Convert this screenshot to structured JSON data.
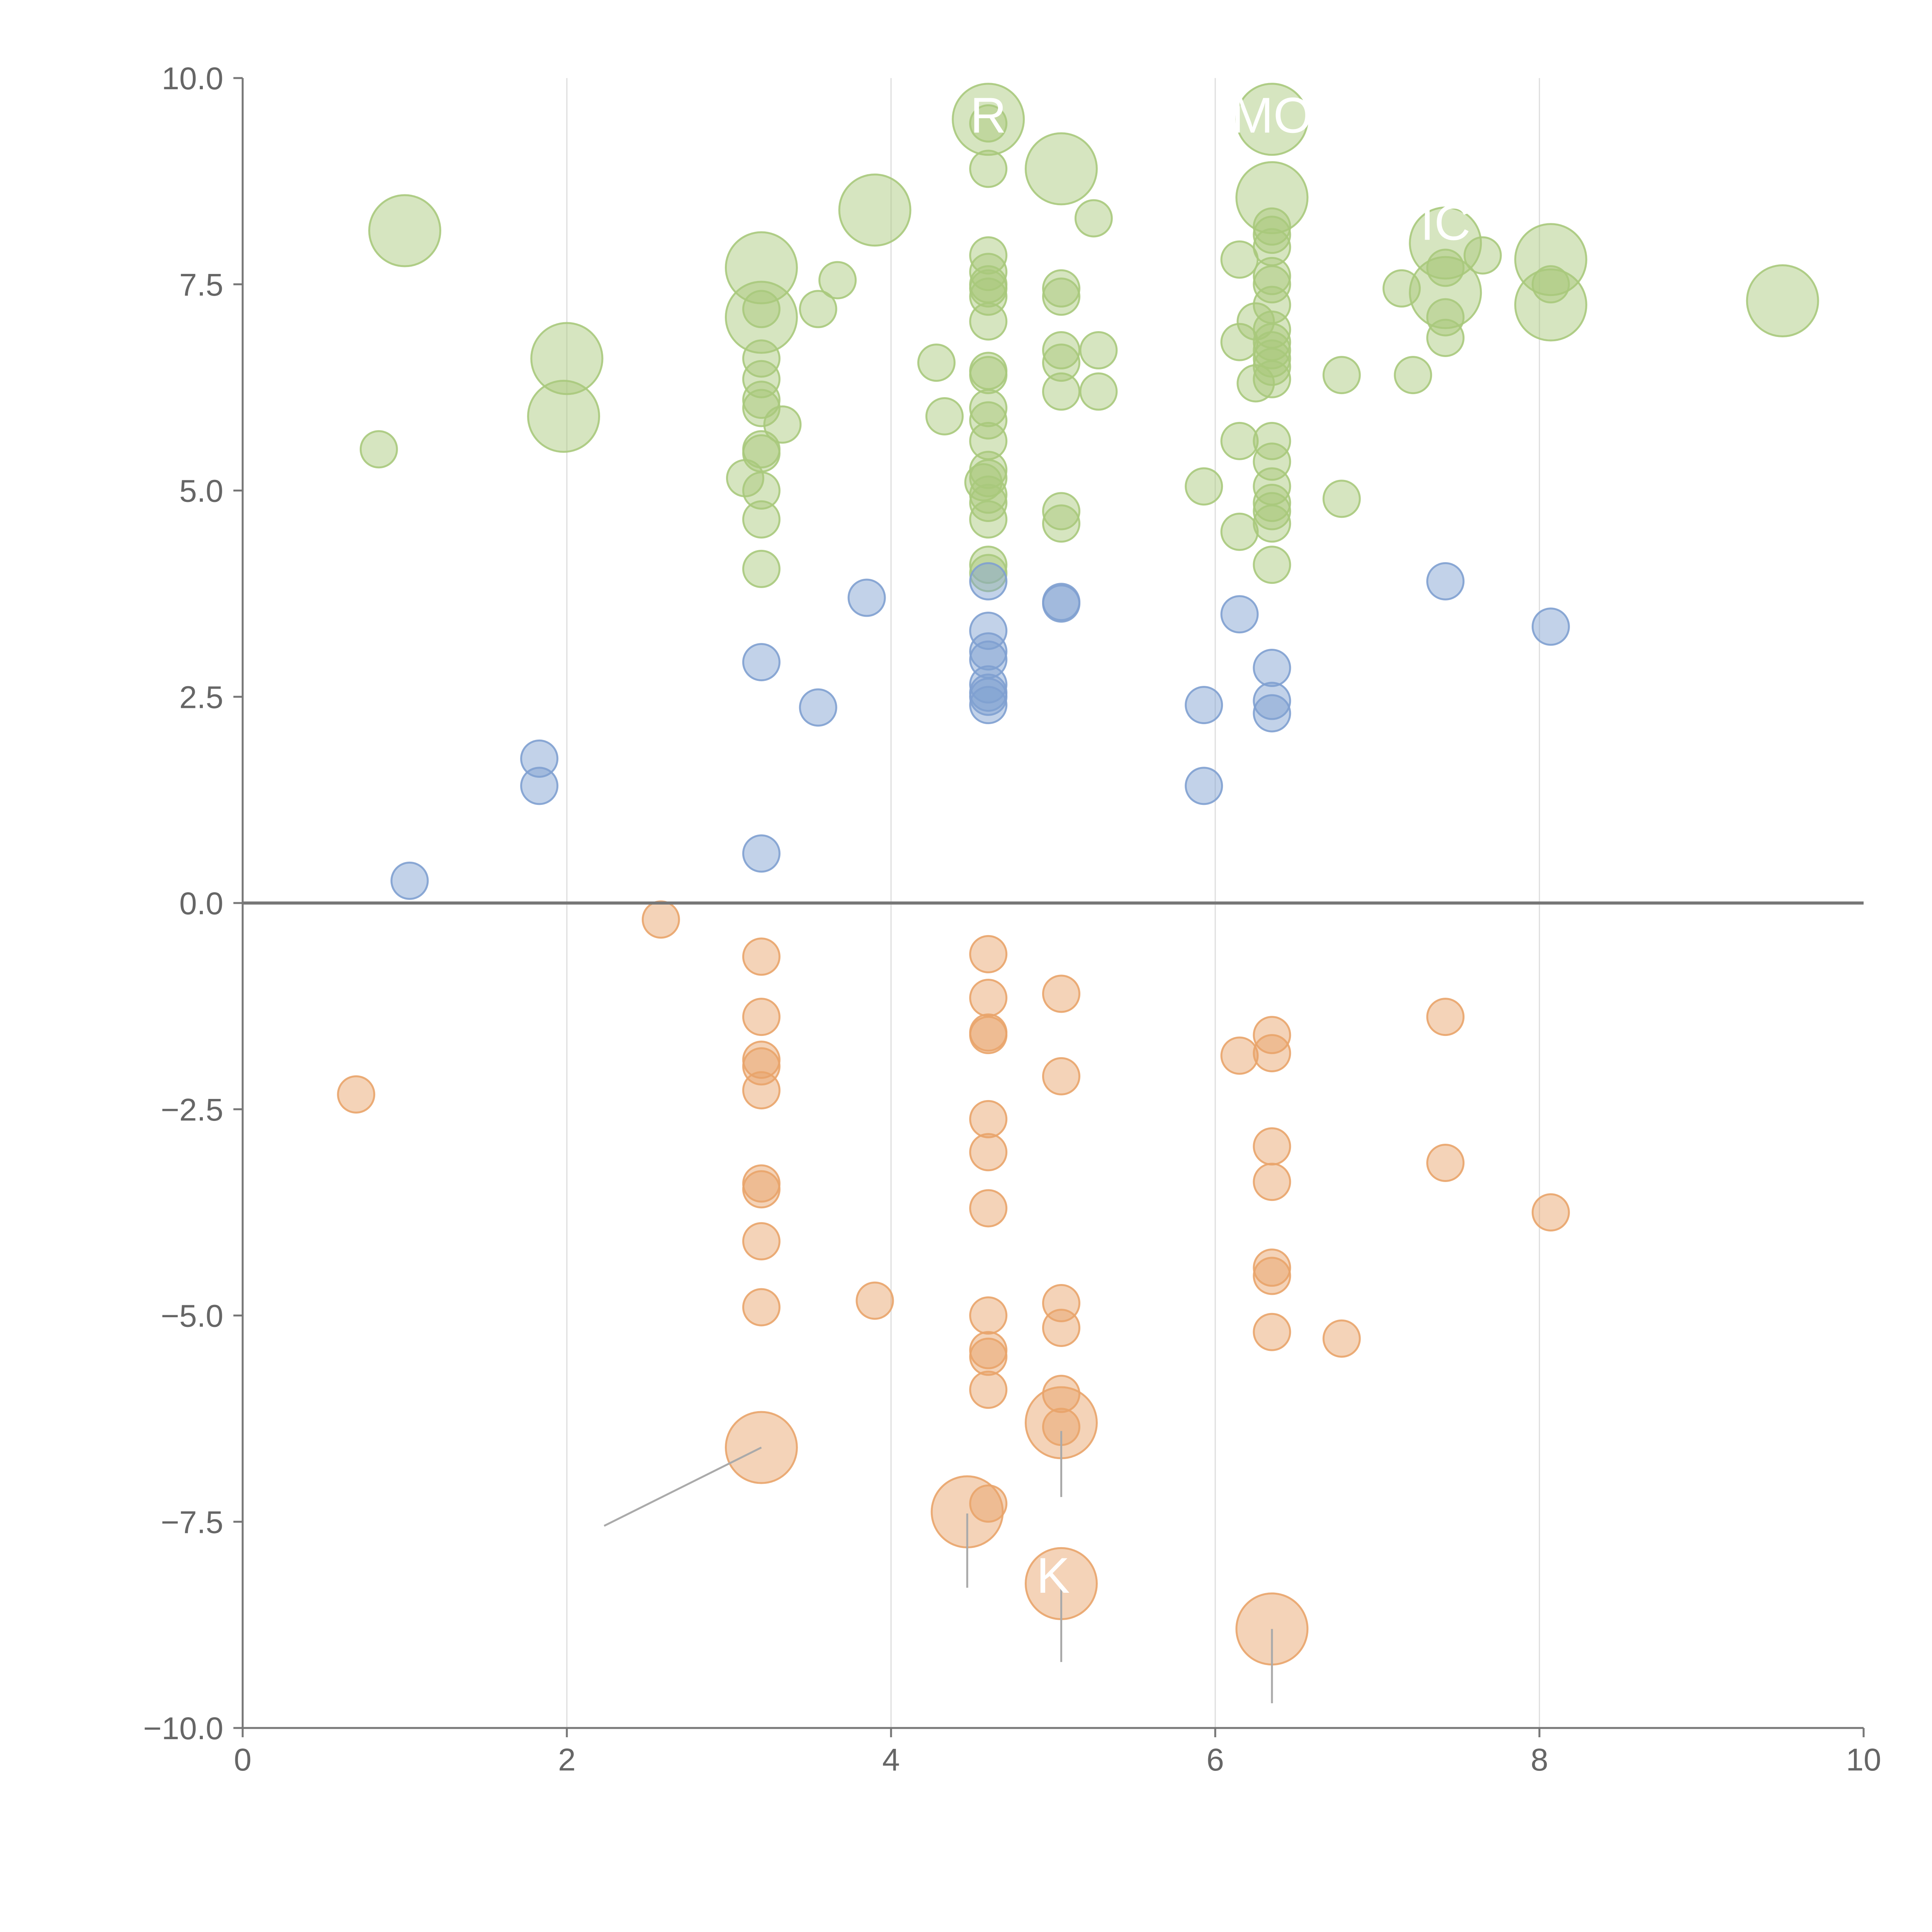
{
  "chart_data": {
    "type": "scatter",
    "title": "",
    "xlabel": "",
    "ylabel": "",
    "xlim": [
      0,
      10
    ],
    "ylim": [
      -10,
      10
    ],
    "x_ticks": [
      "0",
      "2",
      "4",
      "6",
      "8",
      "10"
    ],
    "y_ticks": [
      "10.0",
      "7.5",
      "5.0",
      "2.5",
      "0.0",
      "−2.5",
      "−5.0",
      "−7.5",
      "−10.0"
    ],
    "vertical_gridlines_at": [
      2,
      4,
      6,
      8
    ],
    "reference_line_y": 0,
    "colors": {
      "green": "#a9c97c",
      "blue": "#7fa0d0",
      "orange": "#e9a46a",
      "axis": "#777777",
      "grid": "#dddddd"
    },
    "series": [
      {
        "name": "green",
        "color": "#a9c97c",
        "points": [
          {
            "x": 1.0,
            "y": 8.15,
            "size": 3
          },
          {
            "x": 0.84,
            "y": 5.5,
            "size": 1
          },
          {
            "x": 2.0,
            "y": 6.6,
            "size": 3
          },
          {
            "x": 1.98,
            "y": 5.9,
            "size": 3
          },
          {
            "x": 3.2,
            "y": 7.7,
            "size": 3
          },
          {
            "x": 3.2,
            "y": 7.1,
            "size": 3
          },
          {
            "x": 3.2,
            "y": 7.2,
            "size": 1
          },
          {
            "x": 3.2,
            "y": 6.6,
            "size": 1
          },
          {
            "x": 3.2,
            "y": 6.35,
            "size": 1
          },
          {
            "x": 3.2,
            "y": 6.1,
            "size": 1
          },
          {
            "x": 3.2,
            "y": 6.0,
            "size": 1
          },
          {
            "x": 3.2,
            "y": 5.5,
            "size": 1
          },
          {
            "x": 3.2,
            "y": 5.45,
            "size": 1
          },
          {
            "x": 3.1,
            "y": 5.15,
            "size": 1
          },
          {
            "x": 3.2,
            "y": 5.0,
            "size": 1
          },
          {
            "x": 3.2,
            "y": 4.65,
            "size": 1
          },
          {
            "x": 3.2,
            "y": 4.05,
            "size": 1
          },
          {
            "x": 3.33,
            "y": 5.8,
            "size": 1
          },
          {
            "x": 3.55,
            "y": 7.2,
            "size": 1
          },
          {
            "x": 3.67,
            "y": 7.55,
            "size": 1
          },
          {
            "x": 3.9,
            "y": 8.4,
            "size": 3
          },
          {
            "x": 4.28,
            "y": 6.55,
            "size": 1
          },
          {
            "x": 4.33,
            "y": 5.9,
            "size": 1
          },
          {
            "x": 4.6,
            "y": 9.5,
            "size": 3
          },
          {
            "x": 4.6,
            "y": 9.45,
            "size": 1
          },
          {
            "x": 4.6,
            "y": 8.9,
            "size": 1
          },
          {
            "x": 4.6,
            "y": 7.85,
            "size": 1
          },
          {
            "x": 4.6,
            "y": 7.65,
            "size": 1
          },
          {
            "x": 4.6,
            "y": 7.5,
            "size": 1
          },
          {
            "x": 4.6,
            "y": 7.45,
            "size": 1
          },
          {
            "x": 4.6,
            "y": 7.35,
            "size": 1
          },
          {
            "x": 4.6,
            "y": 7.05,
            "size": 1
          },
          {
            "x": 4.6,
            "y": 6.45,
            "size": 1
          },
          {
            "x": 4.6,
            "y": 6.4,
            "size": 1
          },
          {
            "x": 4.6,
            "y": 6.0,
            "size": 1
          },
          {
            "x": 4.6,
            "y": 5.85,
            "size": 1
          },
          {
            "x": 4.6,
            "y": 5.6,
            "size": 1
          },
          {
            "x": 4.6,
            "y": 5.25,
            "size": 1
          },
          {
            "x": 4.6,
            "y": 5.15,
            "size": 1
          },
          {
            "x": 4.57,
            "y": 5.1,
            "size": 1
          },
          {
            "x": 4.6,
            "y": 4.95,
            "size": 1
          },
          {
            "x": 4.6,
            "y": 4.85,
            "size": 1
          },
          {
            "x": 4.6,
            "y": 4.65,
            "size": 1
          },
          {
            "x": 4.6,
            "y": 4.1,
            "size": 1
          },
          {
            "x": 4.6,
            "y": 4.0,
            "size": 1
          },
          {
            "x": 5.05,
            "y": 8.9,
            "size": 3
          },
          {
            "x": 5.05,
            "y": 7.45,
            "size": 1
          },
          {
            "x": 5.05,
            "y": 7.35,
            "size": 1
          },
          {
            "x": 5.05,
            "y": 6.7,
            "size": 1
          },
          {
            "x": 5.05,
            "y": 6.55,
            "size": 1
          },
          {
            "x": 5.05,
            "y": 6.2,
            "size": 1
          },
          {
            "x": 5.05,
            "y": 4.75,
            "size": 1
          },
          {
            "x": 5.05,
            "y": 4.6,
            "size": 1
          },
          {
            "x": 5.25,
            "y": 8.3,
            "size": 1
          },
          {
            "x": 5.28,
            "y": 6.7,
            "size": 1
          },
          {
            "x": 5.28,
            "y": 6.2,
            "size": 1
          },
          {
            "x": 5.93,
            "y": 5.05,
            "size": 1
          },
          {
            "x": 6.15,
            "y": 7.8,
            "size": 1
          },
          {
            "x": 6.15,
            "y": 6.8,
            "size": 1
          },
          {
            "x": 6.15,
            "y": 5.6,
            "size": 1
          },
          {
            "x": 6.15,
            "y": 4.5,
            "size": 1
          },
          {
            "x": 6.25,
            "y": 7.05,
            "size": 1
          },
          {
            "x": 6.25,
            "y": 6.3,
            "size": 1
          },
          {
            "x": 6.35,
            "y": 9.5,
            "size": 3
          },
          {
            "x": 6.35,
            "y": 8.55,
            "size": 3
          },
          {
            "x": 6.35,
            "y": 8.2,
            "size": 1
          },
          {
            "x": 6.35,
            "y": 8.1,
            "size": 1
          },
          {
            "x": 6.35,
            "y": 7.95,
            "size": 1
          },
          {
            "x": 6.35,
            "y": 7.6,
            "size": 1
          },
          {
            "x": 6.35,
            "y": 7.5,
            "size": 1
          },
          {
            "x": 6.35,
            "y": 7.25,
            "size": 1
          },
          {
            "x": 6.35,
            "y": 6.95,
            "size": 1
          },
          {
            "x": 6.35,
            "y": 6.8,
            "size": 1
          },
          {
            "x": 6.35,
            "y": 6.7,
            "size": 1
          },
          {
            "x": 6.35,
            "y": 6.6,
            "size": 1
          },
          {
            "x": 6.35,
            "y": 6.5,
            "size": 1
          },
          {
            "x": 6.35,
            "y": 6.35,
            "size": 1
          },
          {
            "x": 6.35,
            "y": 5.6,
            "size": 1
          },
          {
            "x": 6.35,
            "y": 5.35,
            "size": 1
          },
          {
            "x": 6.35,
            "y": 5.05,
            "size": 1
          },
          {
            "x": 6.35,
            "y": 4.85,
            "size": 1
          },
          {
            "x": 6.35,
            "y": 4.75,
            "size": 1
          },
          {
            "x": 6.35,
            "y": 4.6,
            "size": 1
          },
          {
            "x": 6.35,
            "y": 4.1,
            "size": 1
          },
          {
            "x": 6.78,
            "y": 6.4,
            "size": 1
          },
          {
            "x": 6.78,
            "y": 4.9,
            "size": 1
          },
          {
            "x": 7.15,
            "y": 7.45,
            "size": 1
          },
          {
            "x": 7.22,
            "y": 6.4,
            "size": 1
          },
          {
            "x": 7.42,
            "y": 8.0,
            "size": 3
          },
          {
            "x": 7.42,
            "y": 7.4,
            "size": 3
          },
          {
            "x": 7.42,
            "y": 7.7,
            "size": 1
          },
          {
            "x": 7.42,
            "y": 7.1,
            "size": 1
          },
          {
            "x": 7.42,
            "y": 6.85,
            "size": 1
          },
          {
            "x": 7.65,
            "y": 7.85,
            "size": 1
          },
          {
            "x": 8.07,
            "y": 7.8,
            "size": 3
          },
          {
            "x": 8.07,
            "y": 7.25,
            "size": 3
          },
          {
            "x": 8.07,
            "y": 7.5,
            "size": 1
          },
          {
            "x": 9.5,
            "y": 7.3,
            "size": 3
          }
        ]
      },
      {
        "name": "blue",
        "color": "#7fa0d0",
        "points": [
          {
            "x": 1.03,
            "y": 0.27,
            "size": 1
          },
          {
            "x": 1.83,
            "y": 1.75,
            "size": 1
          },
          {
            "x": 1.83,
            "y": 1.42,
            "size": 1
          },
          {
            "x": 3.2,
            "y": 2.92,
            "size": 1
          },
          {
            "x": 3.2,
            "y": 0.6,
            "size": 1
          },
          {
            "x": 3.55,
            "y": 2.37,
            "size": 1
          },
          {
            "x": 3.85,
            "y": 3.7,
            "size": 1
          },
          {
            "x": 4.6,
            "y": 3.9,
            "size": 1
          },
          {
            "x": 4.6,
            "y": 3.3,
            "size": 1
          },
          {
            "x": 4.6,
            "y": 3.05,
            "size": 1
          },
          {
            "x": 4.6,
            "y": 2.95,
            "size": 1
          },
          {
            "x": 4.6,
            "y": 2.65,
            "size": 1
          },
          {
            "x": 4.6,
            "y": 2.55,
            "size": 1
          },
          {
            "x": 4.6,
            "y": 2.5,
            "size": 1
          },
          {
            "x": 4.6,
            "y": 2.4,
            "size": 1
          },
          {
            "x": 5.05,
            "y": 3.65,
            "size": 1
          },
          {
            "x": 5.05,
            "y": 3.63,
            "size": 1
          },
          {
            "x": 5.93,
            "y": 2.4,
            "size": 1
          },
          {
            "x": 5.93,
            "y": 1.42,
            "size": 1
          },
          {
            "x": 6.15,
            "y": 3.5,
            "size": 1
          },
          {
            "x": 6.35,
            "y": 2.85,
            "size": 1
          },
          {
            "x": 6.35,
            "y": 2.45,
            "size": 1
          },
          {
            "x": 6.35,
            "y": 2.3,
            "size": 1
          },
          {
            "x": 7.42,
            "y": 3.9,
            "size": 1
          },
          {
            "x": 8.07,
            "y": 3.35,
            "size": 1
          }
        ]
      },
      {
        "name": "orange",
        "color": "#e9a46a",
        "points": [
          {
            "x": 0.7,
            "y": -2.32,
            "size": 1
          },
          {
            "x": 2.58,
            "y": -0.2,
            "size": 1
          },
          {
            "x": 3.2,
            "y": -0.65,
            "size": 1
          },
          {
            "x": 3.2,
            "y": -1.38,
            "size": 1
          },
          {
            "x": 3.2,
            "y": -1.9,
            "size": 1
          },
          {
            "x": 3.2,
            "y": -1.98,
            "size": 1
          },
          {
            "x": 3.2,
            "y": -2.27,
            "size": 1
          },
          {
            "x": 3.2,
            "y": -3.4,
            "size": 1
          },
          {
            "x": 3.2,
            "y": -3.47,
            "size": 1
          },
          {
            "x": 3.2,
            "y": -4.1,
            "size": 1
          },
          {
            "x": 3.2,
            "y": -4.9,
            "size": 1
          },
          {
            "x": 3.2,
            "y": -6.6,
            "size": 3
          },
          {
            "x": 3.9,
            "y": -4.82,
            "size": 1
          },
          {
            "x": 4.6,
            "y": -0.62,
            "size": 1
          },
          {
            "x": 4.6,
            "y": -1.15,
            "size": 1
          },
          {
            "x": 4.6,
            "y": -1.57,
            "size": 1
          },
          {
            "x": 4.6,
            "y": -1.6,
            "size": 1
          },
          {
            "x": 4.6,
            "y": -2.62,
            "size": 1
          },
          {
            "x": 4.6,
            "y": -3.02,
            "size": 1
          },
          {
            "x": 4.6,
            "y": -3.7,
            "size": 1
          },
          {
            "x": 4.6,
            "y": -5.0,
            "size": 1
          },
          {
            "x": 4.6,
            "y": -5.42,
            "size": 1
          },
          {
            "x": 4.6,
            "y": -5.5,
            "size": 1
          },
          {
            "x": 4.6,
            "y": -5.9,
            "size": 1
          },
          {
            "x": 4.47,
            "y": -7.38,
            "size": 3
          },
          {
            "x": 4.6,
            "y": -7.28,
            "size": 1
          },
          {
            "x": 5.05,
            "y": -1.1,
            "size": 1
          },
          {
            "x": 5.05,
            "y": -2.1,
            "size": 1
          },
          {
            "x": 5.05,
            "y": -4.85,
            "size": 1
          },
          {
            "x": 5.05,
            "y": -5.15,
            "size": 1
          },
          {
            "x": 5.05,
            "y": -5.95,
            "size": 1
          },
          {
            "x": 5.05,
            "y": -6.3,
            "size": 3
          },
          {
            "x": 5.05,
            "y": -6.35,
            "size": 1
          },
          {
            "x": 5.05,
            "y": -8.25,
            "size": 3
          },
          {
            "x": 6.15,
            "y": -1.85,
            "size": 1
          },
          {
            "x": 6.35,
            "y": -1.6,
            "size": 1
          },
          {
            "x": 6.35,
            "y": -1.82,
            "size": 1
          },
          {
            "x": 6.35,
            "y": -2.95,
            "size": 1
          },
          {
            "x": 6.35,
            "y": -3.38,
            "size": 1
          },
          {
            "x": 6.35,
            "y": -4.42,
            "size": 1
          },
          {
            "x": 6.35,
            "y": -4.52,
            "size": 1
          },
          {
            "x": 6.35,
            "y": -5.2,
            "size": 1
          },
          {
            "x": 6.35,
            "y": -8.8,
            "size": 3
          },
          {
            "x": 6.78,
            "y": -5.28,
            "size": 1
          },
          {
            "x": 7.42,
            "y": -1.38,
            "size": 1
          },
          {
            "x": 7.42,
            "y": -3.15,
            "size": 1
          },
          {
            "x": 8.07,
            "y": -3.75,
            "size": 1
          }
        ]
      }
    ],
    "annotations": [
      {
        "text": "R",
        "x": 4.6,
        "y": 9.55
      },
      {
        "text": "MO",
        "x": 6.35,
        "y": 9.55
      },
      {
        "text": "IC",
        "x": 7.42,
        "y": 8.25
      },
      {
        "text": "K",
        "x": 5.0,
        "y": -8.15
      }
    ]
  }
}
